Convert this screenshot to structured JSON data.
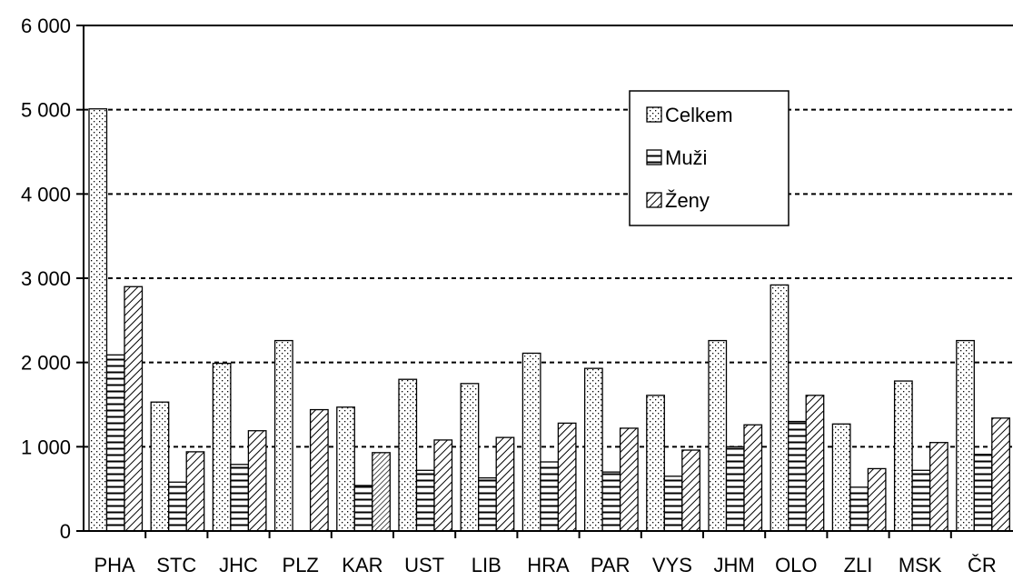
{
  "chart_data": {
    "type": "bar",
    "categories": [
      "PHA",
      "STC",
      "JHC",
      "PLZ",
      "KAR",
      "UST",
      "LIB",
      "HRA",
      "PAR",
      "VYS",
      "JHM",
      "OLO",
      "ZLI",
      "MSK",
      "ČR"
    ],
    "series": [
      {
        "name": "Celkem",
        "values": [
          5010,
          1530,
          1990,
          2260,
          1470,
          1800,
          1750,
          2110,
          1930,
          1610,
          2260,
          2920,
          1270,
          1780,
          2260
        ]
      },
      {
        "name": "Muži",
        "values": [
          2090,
          580,
          790,
          0,
          540,
          720,
          630,
          820,
          700,
          650,
          1000,
          1300,
          520,
          720,
          910
        ]
      },
      {
        "name": "Ženy",
        "values": [
          2900,
          940,
          1190,
          1440,
          930,
          1080,
          1110,
          1280,
          1220,
          960,
          1260,
          1610,
          740,
          1050,
          1340
        ]
      }
    ],
    "yticks": [
      "0",
      "1 000",
      "2 000",
      "3 000",
      "4 000",
      "5 000",
      "6 000"
    ],
    "ylim": [
      0,
      6000
    ],
    "title": "",
    "xlabel": "",
    "ylabel": "",
    "grid": "horizontal-dashed",
    "legend_position": "top-right"
  }
}
